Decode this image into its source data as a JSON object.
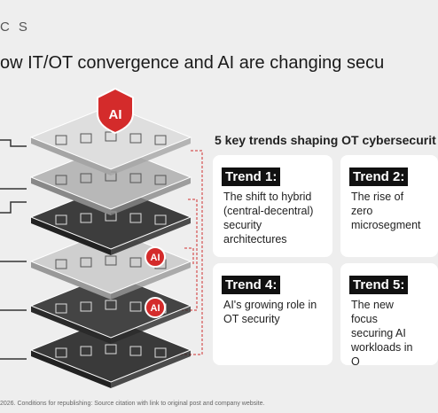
{
  "header": {
    "brand": "CS",
    "title": "ow IT/OT convergence and AI are changing secu"
  },
  "diagram": {
    "badges": [
      "AI",
      "AI",
      "AI"
    ]
  },
  "trends": {
    "heading": "5 key trends shaping OT cybersecurit",
    "items": [
      {
        "label": "Trend 1:",
        "text": "The shift to hybrid (central-decentral) security architectures"
      },
      {
        "label": "Trend 2:",
        "text": "The rise of zero microsegment"
      },
      {
        "label": "Trend 4:",
        "text": "AI's growing role in OT security"
      },
      {
        "label": "Trend 5:",
        "text": "The new focus securing AI workloads in O"
      }
    ]
  },
  "footer": "2026. Conditions for republishing: Source citation with link to original post and company website."
}
